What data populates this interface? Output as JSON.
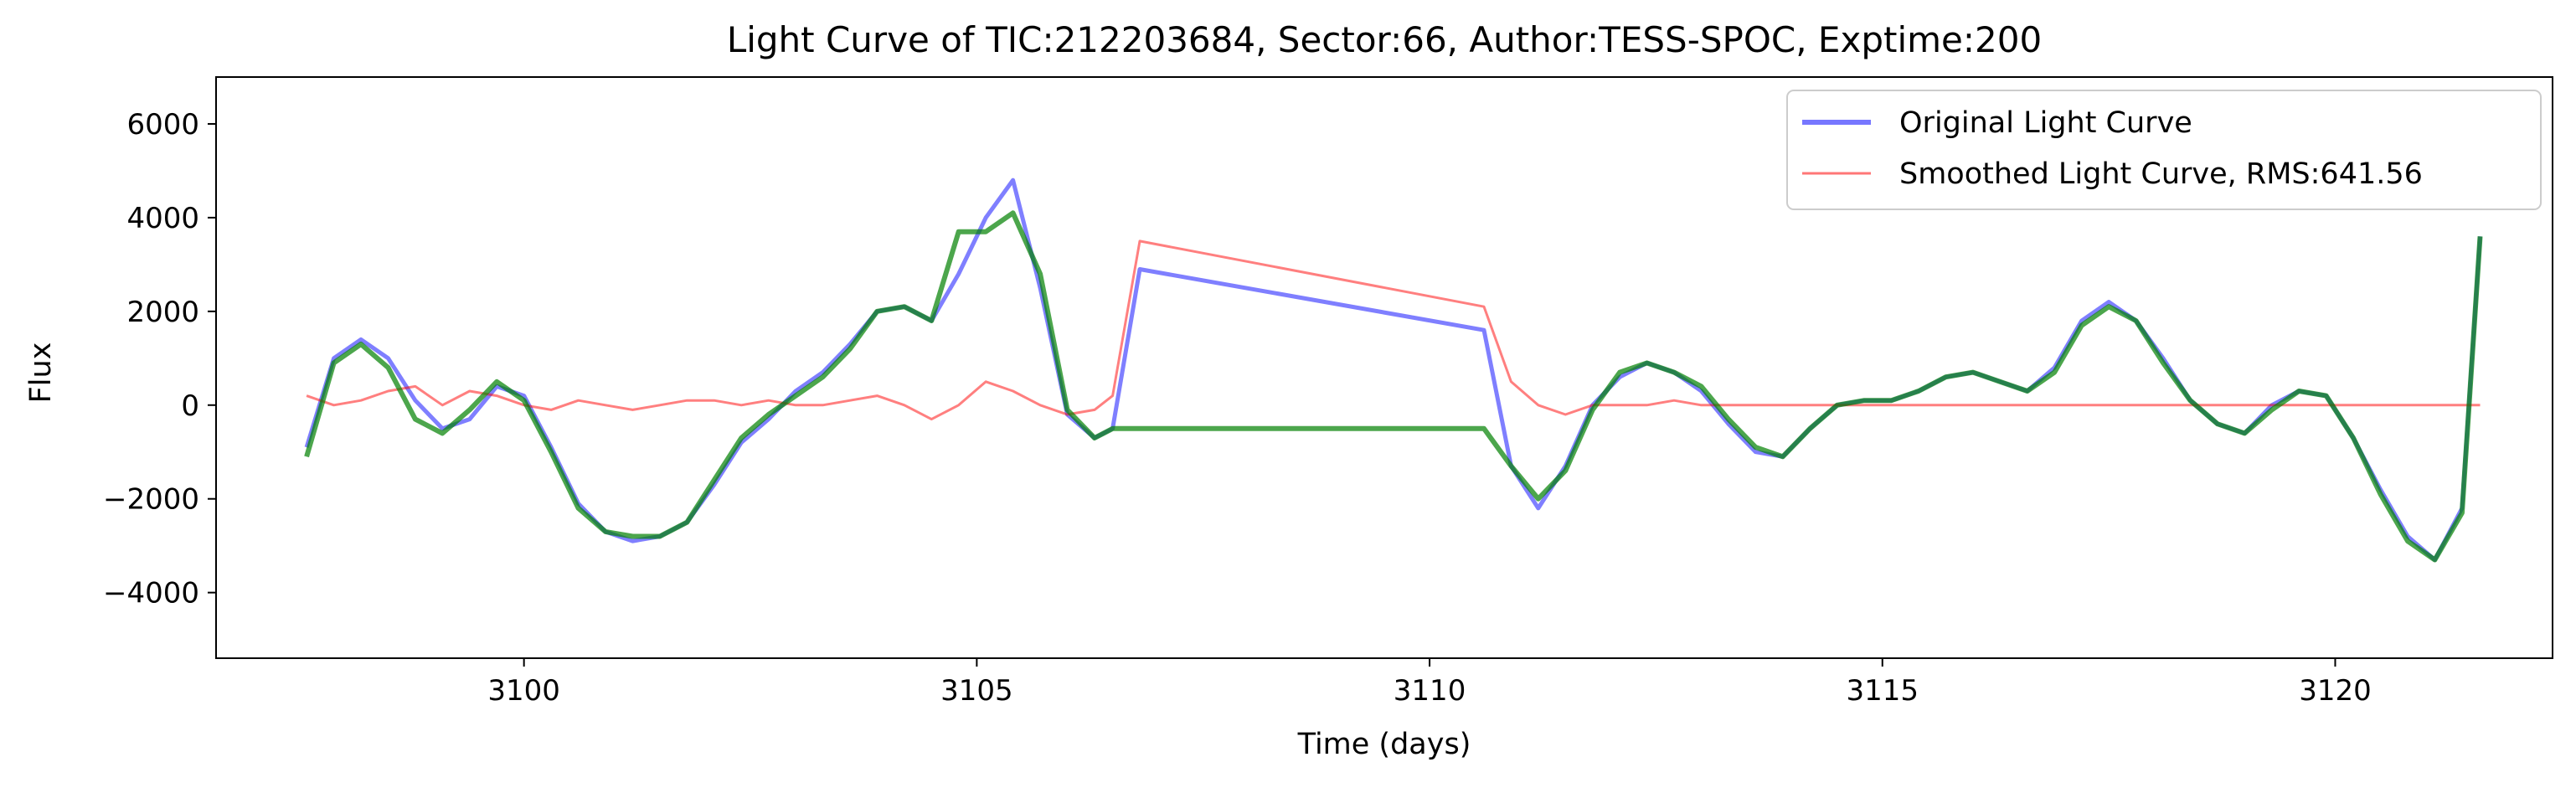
{
  "chart_data": {
    "type": "line",
    "title": "Light Curve of TIC:212203684, Sector:66, Author:TESS-SPOC, Exptime:200",
    "xlabel": "Time (days)",
    "ylabel": "Flux",
    "xlim": [
      3096.6,
      3122.4
    ],
    "ylim": [
      -5400,
      7000
    ],
    "xticks": [
      3100,
      3105,
      3110,
      3115,
      3120
    ],
    "yticks": [
      -4000,
      -2000,
      0,
      2000,
      4000,
      6000
    ],
    "grid": false,
    "legend": {
      "placement": "top-right"
    },
    "series": [
      {
        "name": "Original Light Curve",
        "color": "#0000ff",
        "x": [
          3097.6,
          3097.9,
          3098.2,
          3098.5,
          3098.8,
          3099.1,
          3099.4,
          3099.7,
          3100.0,
          3100.3,
          3100.6,
          3100.9,
          3101.2,
          3101.5,
          3101.8,
          3102.1,
          3102.4,
          3102.7,
          3103.0,
          3103.3,
          3103.6,
          3103.9,
          3104.2,
          3104.5,
          3104.8,
          3105.1,
          3105.4,
          3105.7,
          3106.0,
          3106.3,
          3106.5,
          3106.8,
          3110.6,
          3110.9,
          3111.2,
          3111.5,
          3111.8,
          3112.1,
          3112.4,
          3112.7,
          3113.0,
          3113.3,
          3113.6,
          3113.9,
          3114.2,
          3114.5,
          3114.8,
          3115.1,
          3115.4,
          3115.7,
          3116.0,
          3116.3,
          3116.6,
          3116.9,
          3117.2,
          3117.5,
          3117.8,
          3118.1,
          3118.4,
          3118.7,
          3119.0,
          3119.3,
          3119.6,
          3119.9,
          3120.2,
          3120.5,
          3120.8,
          3121.1,
          3121.4,
          3121.6
        ],
        "y": [
          -900,
          1000,
          1400,
          1000,
          100,
          -500,
          -300,
          400,
          200,
          -900,
          -2100,
          -2700,
          -2900,
          -2800,
          -2500,
          -1700,
          -800,
          -300,
          300,
          700,
          1300,
          2000,
          2100,
          1800,
          2800,
          4000,
          4800,
          2500,
          -200,
          -700,
          -500,
          2900,
          1600,
          -1300,
          -2200,
          -1300,
          0,
          600,
          900,
          700,
          300,
          -400,
          -1000,
          -1100,
          -500,
          0,
          100,
          100,
          300,
          600,
          700,
          500,
          300,
          800,
          1800,
          2200,
          1800,
          1000,
          100,
          -400,
          -600,
          0,
          300,
          200,
          -700,
          -1800,
          -2800,
          -3300,
          -2200,
          3600
        ]
      },
      {
        "name": "Smoothed Light Curve, RMS:641.56",
        "color": "#ff0000",
        "x": [
          3097.6,
          3097.9,
          3098.2,
          3098.5,
          3098.8,
          3099.1,
          3099.4,
          3099.7,
          3100.0,
          3100.3,
          3100.6,
          3100.9,
          3101.2,
          3101.5,
          3101.8,
          3102.1,
          3102.4,
          3102.7,
          3103.0,
          3103.3,
          3103.6,
          3103.9,
          3104.2,
          3104.5,
          3104.8,
          3105.1,
          3105.4,
          3105.7,
          3106.0,
          3106.3,
          3106.5,
          3106.8,
          3110.6,
          3110.9,
          3111.2,
          3111.5,
          3111.8,
          3112.1,
          3112.4,
          3112.7,
          3113.0,
          3113.3,
          3113.6,
          3113.9,
          3114.2,
          3114.5,
          3114.8,
          3115.1,
          3115.4,
          3115.7,
          3116.0,
          3116.3,
          3116.6,
          3116.9,
          3117.2,
          3117.5,
          3117.8,
          3118.1,
          3118.4,
          3118.7,
          3119.0,
          3119.3,
          3119.6,
          3119.9,
          3120.2,
          3120.5,
          3120.8,
          3121.1,
          3121.4,
          3121.6
        ],
        "y": [
          200,
          0,
          100,
          300,
          400,
          0,
          300,
          200,
          0,
          -100,
          100,
          0,
          -100,
          0,
          100,
          100,
          0,
          100,
          0,
          0,
          100,
          200,
          0,
          -300,
          0,
          500,
          300,
          0,
          -200,
          -100,
          200,
          3500,
          2100,
          500,
          0,
          -200,
          0,
          0,
          0,
          100,
          0,
          0,
          0,
          0,
          0,
          0,
          0,
          0,
          0,
          0,
          0,
          0,
          0,
          0,
          0,
          0,
          0,
          0,
          0,
          0,
          0,
          0,
          0,
          0,
          0,
          0,
          0,
          0,
          0,
          0
        ]
      },
      {
        "name": "",
        "color": "#008000",
        "x": [
          3097.6,
          3097.9,
          3098.2,
          3098.5,
          3098.8,
          3099.1,
          3099.4,
          3099.7,
          3100.0,
          3100.3,
          3100.6,
          3100.9,
          3101.2,
          3101.5,
          3101.8,
          3102.1,
          3102.4,
          3102.7,
          3103.0,
          3103.3,
          3103.6,
          3103.9,
          3104.2,
          3104.5,
          3104.8,
          3105.1,
          3105.4,
          3105.7,
          3106.0,
          3106.3,
          3106.5,
          3106.8,
          3110.6,
          3110.9,
          3111.2,
          3111.5,
          3111.8,
          3112.1,
          3112.4,
          3112.7,
          3113.0,
          3113.3,
          3113.6,
          3113.9,
          3114.2,
          3114.5,
          3114.8,
          3115.1,
          3115.4,
          3115.7,
          3116.0,
          3116.3,
          3116.6,
          3116.9,
          3117.2,
          3117.5,
          3117.8,
          3118.1,
          3118.4,
          3118.7,
          3119.0,
          3119.3,
          3119.6,
          3119.9,
          3120.2,
          3120.5,
          3120.8,
          3121.1,
          3121.4,
          3121.6
        ],
        "y": [
          -1100,
          900,
          1300,
          800,
          -300,
          -600,
          -100,
          500,
          100,
          -1000,
          -2200,
          -2700,
          -2800,
          -2800,
          -2500,
          -1600,
          -700,
          -200,
          200,
          600,
          1200,
          2000,
          2100,
          1800,
          3700,
          3700,
          4100,
          2800,
          -100,
          -700,
          -500,
          -500,
          -500,
          -1300,
          -2000,
          -1400,
          -100,
          700,
          900,
          700,
          400,
          -300,
          -900,
          -1100,
          -500,
          0,
          100,
          100,
          300,
          600,
          700,
          500,
          300,
          700,
          1700,
          2100,
          1800,
          900,
          100,
          -400,
          -600,
          -100,
          300,
          200,
          -700,
          -1900,
          -2900,
          -3300,
          -2300,
          3600
        ]
      }
    ]
  }
}
